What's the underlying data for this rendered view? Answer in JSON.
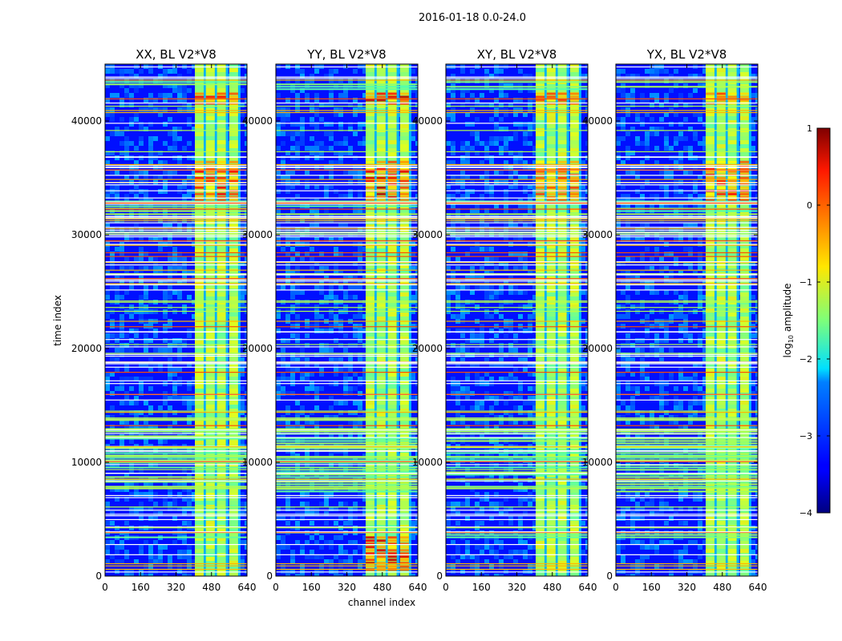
{
  "figure": {
    "suptitle": "2016-01-18 0.0-24.0"
  },
  "chart_data": {
    "type": "heatmap",
    "shared": {
      "xlabel": "channel index",
      "ylabel": "time index",
      "xlim": [
        0,
        640
      ],
      "ylim": [
        0,
        45000
      ],
      "xticks": [
        0,
        160,
        320,
        480,
        640
      ],
      "xtick_labels": [
        "0",
        "160",
        "320",
        "480",
        "640"
      ],
      "yticks": [
        0,
        10000,
        20000,
        30000,
        40000
      ],
      "ytick_labels": [
        "0",
        "10000",
        "20000",
        "30000",
        "40000"
      ],
      "colormap": "jet"
    },
    "panels": [
      {
        "title": "XX, BL V2*V8",
        "hot_rows": [
          [
            33000,
            36500
          ],
          [
            41500,
            42500
          ]
        ],
        "hot_strength": 0.75
      },
      {
        "title": "YY, BL V2*V8",
        "hot_rows": [
          [
            33000,
            36500
          ],
          [
            41500,
            42500
          ],
          [
            500,
            3500
          ]
        ],
        "hot_strength": 0.95
      },
      {
        "title": "XY, BL V2*V8",
        "hot_rows": [
          [
            33000,
            36500
          ],
          [
            41500,
            42500
          ]
        ],
        "hot_strength": 0.6
      },
      {
        "title": "YX, BL V2*V8",
        "hot_rows": [
          [
            33000,
            36500
          ],
          [
            41500,
            42500
          ]
        ],
        "hot_strength": 0.8
      }
    ],
    "bright_channel_bands": [
      [
        405,
        445
      ],
      [
        455,
        495
      ],
      [
        505,
        545
      ],
      [
        560,
        600
      ]
    ],
    "flagged_time_ranges": [
      [
        3300,
        3900
      ],
      [
        7500,
        13000
      ],
      [
        31800,
        33000
      ],
      [
        42700,
        43500
      ]
    ],
    "colorbar": {
      "label_prefix": "log",
      "label_subscript": "10",
      "label_suffix": " amplitude",
      "range": [
        -4,
        1
      ],
      "ticks": [
        1,
        0,
        -1,
        -2,
        -3,
        -4
      ],
      "tick_labels": [
        "1",
        "0",
        "−1",
        "−2",
        "−3",
        "−4"
      ]
    }
  }
}
